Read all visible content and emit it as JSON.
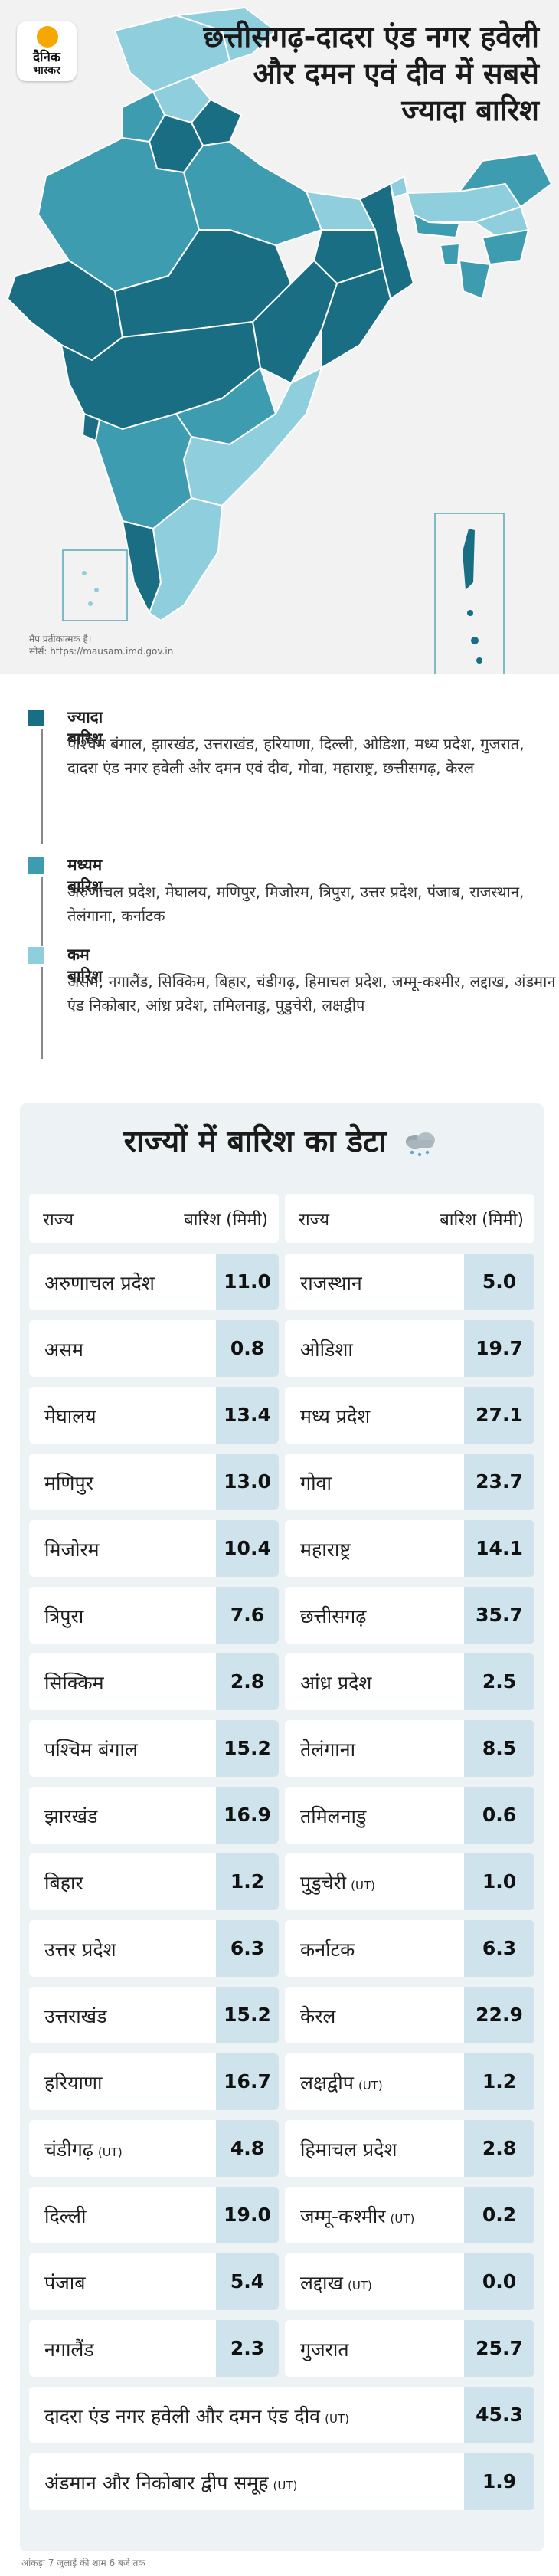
{
  "header": {
    "logo_line1": "दैनिक",
    "logo_line2": "भास्कर",
    "title": "छत्तीसगढ़-दादरा एंड नगर हवेली और दमन एवं दीव में सबसे ज्यादा बारिश"
  },
  "map_note": {
    "line1": "मैप प्रतीकात्मक है।",
    "line2": "सोर्स: https://mausam.imd.gov.in"
  },
  "colors": {
    "high": "#1a6e84",
    "medium": "#3e9cb0",
    "low": "#8fcfdd"
  },
  "legend": [
    {
      "color": "#1a6e84",
      "label": "ज्यादा बारिश",
      "states": "पश्चिम बंगाल, झारखंड, उत्तराखंड, हरियाणा, दिल्ली, ओडिशा, मध्य प्रदेश, गुजरात, दादरा एंड नगर हवेली और दमन एवं दीव, गोवा, महाराष्ट्र, छत्तीसगढ़, केरल"
    },
    {
      "color": "#3e9cb0",
      "label": "मध्यम बारिश",
      "states": "अरुणाचल प्रदेश, मेघालय, मणिपुर, मिजोरम, त्रिपुरा, उत्तर प्रदेश, पंजाब, राजस्थान, तेलंगाना, कर्नाटक"
    },
    {
      "color": "#8fcfdd",
      "label": "कम बारिश",
      "states": "असम, नगालैंड, सिक्किम, बिहार, चंडीगढ़, हिमाचल प्रदेश, जम्मू-कश्मीर, लद्दाख, अंडमान एंड निकोबार, आंध्र प्रदेश, तमिलनाडु, पुडुचेरी, लक्षद्वीप"
    }
  ],
  "table": {
    "title": "राज्यों में बारिश का डेटा",
    "col_state": "राज्य",
    "col_rain": "बारिश (मिमी)",
    "left": [
      {
        "state": "अरुणाचल प्रदेश",
        "ut": "",
        "value": "11.0"
      },
      {
        "state": "असम",
        "ut": "",
        "value": "0.8"
      },
      {
        "state": "मेघालय",
        "ut": "",
        "value": "13.4"
      },
      {
        "state": "मणिपुर",
        "ut": "",
        "value": "13.0"
      },
      {
        "state": "मिजोरम",
        "ut": "",
        "value": "10.4"
      },
      {
        "state": "त्रिपुरा",
        "ut": "",
        "value": "7.6"
      },
      {
        "state": "सिक्किम",
        "ut": "",
        "value": "2.8"
      },
      {
        "state": "पश्चिम बंगाल",
        "ut": "",
        "value": "15.2"
      },
      {
        "state": "झारखंड",
        "ut": "",
        "value": "16.9"
      },
      {
        "state": "बिहार",
        "ut": "",
        "value": "1.2"
      },
      {
        "state": "उत्तर प्रदेश",
        "ut": "",
        "value": "6.3"
      },
      {
        "state": "उत्तराखंड",
        "ut": "",
        "value": "15.2"
      },
      {
        "state": "हरियाणा",
        "ut": "",
        "value": "16.7"
      },
      {
        "state": "चंडीगढ़",
        "ut": "(UT)",
        "value": "4.8"
      },
      {
        "state": "दिल्ली",
        "ut": "",
        "value": "19.0"
      },
      {
        "state": "पंजाब",
        "ut": "",
        "value": "5.4"
      },
      {
        "state": "नगालैंड",
        "ut": "",
        "value": "2.3"
      }
    ],
    "right": [
      {
        "state": "राजस्थान",
        "ut": "",
        "value": "5.0"
      },
      {
        "state": "ओडिशा",
        "ut": "",
        "value": "19.7"
      },
      {
        "state": "मध्य प्रदेश",
        "ut": "",
        "value": "27.1"
      },
      {
        "state": "गोवा",
        "ut": "",
        "value": "23.7"
      },
      {
        "state": "महाराष्ट्र",
        "ut": "",
        "value": "14.1"
      },
      {
        "state": "छत्तीसगढ़",
        "ut": "",
        "value": "35.7"
      },
      {
        "state": "आंध्र प्रदेश",
        "ut": "",
        "value": "2.5"
      },
      {
        "state": "तेलंगाना",
        "ut": "",
        "value": "8.5"
      },
      {
        "state": "तमिलनाडु",
        "ut": "",
        "value": "0.6"
      },
      {
        "state": "पुडुचेरी",
        "ut": "(UT)",
        "value": "1.0"
      },
      {
        "state": "कर्नाटक",
        "ut": "",
        "value": "6.3"
      },
      {
        "state": "केरल",
        "ut": "",
        "value": "22.9"
      },
      {
        "state": "लक्षद्वीप",
        "ut": "(UT)",
        "value": "1.2"
      },
      {
        "state": "हिमाचल प्रदेश",
        "ut": "",
        "value": "2.8"
      },
      {
        "state": "जम्मू-कश्मीर",
        "ut": "(UT)",
        "value": "0.2"
      },
      {
        "state": "लद्दाख",
        "ut": "(UT)",
        "value": "0.0"
      },
      {
        "state": "गुजरात",
        "ut": "",
        "value": "25.7"
      }
    ],
    "full": [
      {
        "state": "दादरा एंड नगर हवेली और दमन एंड दीव",
        "ut": "(UT)",
        "value": "45.3"
      },
      {
        "state": "अंडमान और निकोबार द्वीप समूह",
        "ut": "(UT)",
        "value": "1.9"
      }
    ]
  },
  "footer": "आंकड़ा 7 जुलाई की शाम 6 बजे तक"
}
